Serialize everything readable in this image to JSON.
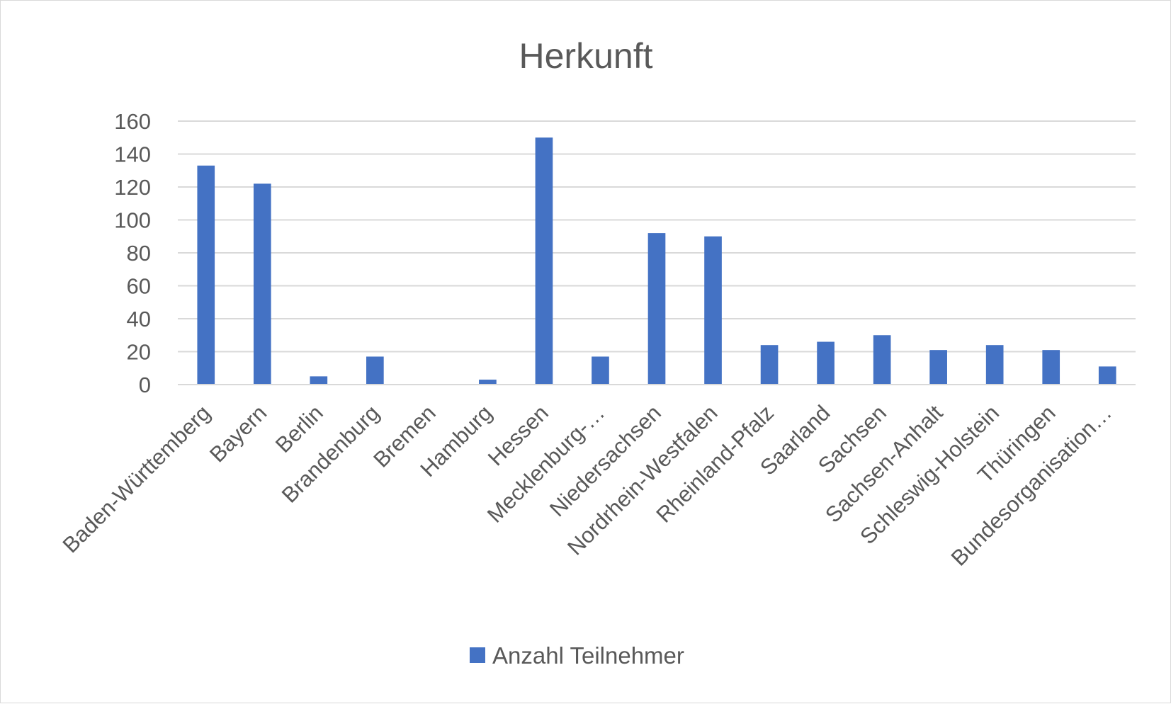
{
  "chart_data": {
    "type": "bar",
    "title": "Herkunft",
    "xlabel": "",
    "ylabel": "",
    "ylim": [
      0,
      160
    ],
    "yticks": [
      "0",
      "20",
      "40",
      "60",
      "80",
      "100",
      "120",
      "140",
      "160"
    ],
    "grid": true,
    "legend_position": "bottom",
    "categories": [
      "Baden-Württemberg",
      "Bayern",
      "Berlin",
      "Brandenburg",
      "Bremen",
      "Hamburg",
      "Hessen",
      "Mecklenburg-…",
      "Niedersachsen",
      "Nordrhein-Westfalen",
      "Rheinland-Pfalz",
      "Saarland",
      "Sachsen",
      "Sachsen-Anhalt",
      "Schleswig-Holstein",
      "Thüringen",
      "Bundesorganisation…"
    ],
    "series": [
      {
        "name": "Anzahl Teilnehmer",
        "color": "#4472c4",
        "values": [
          133,
          122,
          5,
          17,
          0,
          3,
          150,
          17,
          92,
          90,
          24,
          26,
          30,
          21,
          24,
          21,
          11
        ]
      }
    ]
  }
}
